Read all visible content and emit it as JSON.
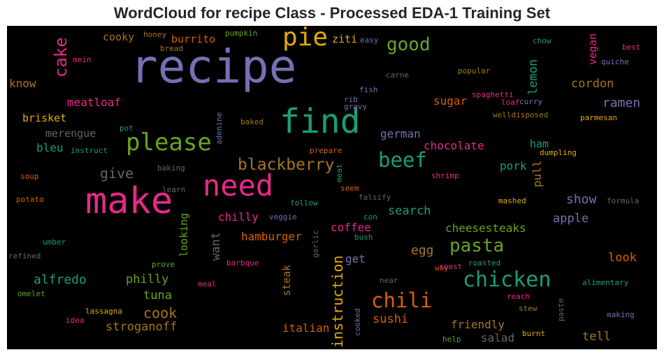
{
  "chart_data": {
    "type": "wordcloud",
    "title": "WordCloud for recipe Class - Processed EDA-1 Training Set",
    "background": "#000000",
    "palette": "Dark2",
    "words": [
      {
        "text": "recipe",
        "weight": 100,
        "color": "#7570b3"
      },
      {
        "text": "make",
        "weight": 80,
        "color": "#e7298a"
      },
      {
        "text": "find",
        "weight": 75,
        "color": "#1b9e77"
      },
      {
        "text": "need",
        "weight": 65,
        "color": "#e7298a"
      },
      {
        "text": "pie",
        "weight": 55,
        "color": "#e6ab02"
      },
      {
        "text": "please",
        "weight": 55,
        "color": "#66a61e"
      },
      {
        "text": "chicken",
        "weight": 50,
        "color": "#1b9e77"
      },
      {
        "text": "chili",
        "weight": 48,
        "color": "#d95f02"
      },
      {
        "text": "beef",
        "weight": 45,
        "color": "#1b9e77"
      },
      {
        "text": "blackberry",
        "weight": 42,
        "color": "#a6761d"
      },
      {
        "text": "pasta",
        "weight": 42,
        "color": "#66a61e"
      },
      {
        "text": "good",
        "weight": 40,
        "color": "#66a61e"
      },
      {
        "text": "cake",
        "weight": 36,
        "color": "#e7298a"
      },
      {
        "text": "instruction",
        "weight": 32,
        "color": "#e6ab02"
      },
      {
        "text": "give",
        "weight": 30,
        "color": "#666666"
      },
      {
        "text": "cook",
        "weight": 30,
        "color": "#a6761d"
      },
      {
        "text": "lemon",
        "weight": 28,
        "color": "#1b9e77"
      },
      {
        "text": "ramen",
        "weight": 28,
        "color": "#7570b3"
      },
      {
        "text": "cordon",
        "weight": 28,
        "color": "#a6761d"
      },
      {
        "text": "show",
        "weight": 28,
        "color": "#7570b3"
      },
      {
        "text": "apple",
        "weight": 28,
        "color": "#7570b3"
      },
      {
        "text": "look",
        "weight": 28,
        "color": "#d95f02"
      },
      {
        "text": "tell",
        "weight": 28,
        "color": "#a6761d"
      },
      {
        "text": "coffee",
        "weight": 27,
        "color": "#e7298a"
      },
      {
        "text": "search",
        "weight": 27,
        "color": "#1b9e77"
      },
      {
        "text": "egg",
        "weight": 27,
        "color": "#a6761d"
      },
      {
        "text": "friendly",
        "weight": 27,
        "color": "#a6761d"
      },
      {
        "text": "salad",
        "weight": 27,
        "color": "#666666"
      },
      {
        "text": "sushi",
        "weight": 27,
        "color": "#d95f02"
      },
      {
        "text": "italian",
        "weight": 27,
        "color": "#d95f02"
      },
      {
        "text": "tuna",
        "weight": 27,
        "color": "#66a61e"
      },
      {
        "text": "stroganoff",
        "weight": 27,
        "color": "#a6761d"
      },
      {
        "text": "alfredo",
        "weight": 27,
        "color": "#1b9e77"
      },
      {
        "text": "philly",
        "weight": 27,
        "color": "#66a61e"
      },
      {
        "text": "want",
        "weight": 27,
        "color": "#666666"
      },
      {
        "text": "hamburger",
        "weight": 26,
        "color": "#d95f02"
      },
      {
        "text": "chilly",
        "weight": 26,
        "color": "#e7298a"
      },
      {
        "text": "looking",
        "weight": 26,
        "color": "#66a61e"
      },
      {
        "text": "cheesesteaks",
        "weight": 26,
        "color": "#66a61e"
      },
      {
        "text": "pork",
        "weight": 26,
        "color": "#1b9e77"
      },
      {
        "text": "pull",
        "weight": 26,
        "color": "#a6761d"
      },
      {
        "text": "ham",
        "weight": 26,
        "color": "#1b9e77"
      },
      {
        "text": "chocolate",
        "weight": 26,
        "color": "#e7298a"
      },
      {
        "text": "german",
        "weight": 26,
        "color": "#7570b3"
      },
      {
        "text": "sugar",
        "weight": 26,
        "color": "#d95f02"
      },
      {
        "text": "steak",
        "weight": 26,
        "color": "#a6761d"
      },
      {
        "text": "get",
        "weight": 26,
        "color": "#7570b3"
      },
      {
        "text": "vegan",
        "weight": 24,
        "color": "#e7298a"
      },
      {
        "text": "cooky",
        "weight": 24,
        "color": "#a6761d"
      },
      {
        "text": "burrito",
        "weight": 24,
        "color": "#d95f02"
      },
      {
        "text": "ziti",
        "weight": 24,
        "color": "#e6ab02"
      },
      {
        "text": "know",
        "weight": 24,
        "color": "#a6761d"
      },
      {
        "text": "meatloaf",
        "weight": 24,
        "color": "#e7298a"
      },
      {
        "text": "brisket",
        "weight": 24,
        "color": "#e6ab02"
      },
      {
        "text": "merengue",
        "weight": 24,
        "color": "#666666"
      },
      {
        "text": "bleu",
        "weight": 24,
        "color": "#1b9e77"
      },
      {
        "text": "honey",
        "weight": 18,
        "color": "#a6761d"
      },
      {
        "text": "pumpkin",
        "weight": 18,
        "color": "#66a61e"
      },
      {
        "text": "easy",
        "weight": 18,
        "color": "#7570b3"
      },
      {
        "text": "chow",
        "weight": 18,
        "color": "#1b9e77"
      },
      {
        "text": "best",
        "weight": 18,
        "color": "#e7298a"
      },
      {
        "text": "quiche",
        "weight": 18,
        "color": "#7570b3"
      },
      {
        "text": "mein",
        "weight": 18,
        "color": "#e7298a"
      },
      {
        "text": "bread",
        "weight": 18,
        "color": "#a6761d"
      },
      {
        "text": "carne",
        "weight": 18,
        "color": "#666666"
      },
      {
        "text": "popular",
        "weight": 18,
        "color": "#a6761d"
      },
      {
        "text": "fish",
        "weight": 18,
        "color": "#7570b3"
      },
      {
        "text": "rib",
        "weight": 18,
        "color": "#7570b3"
      },
      {
        "text": "gravy",
        "weight": 18,
        "color": "#7570b3"
      },
      {
        "text": "spaghetti",
        "weight": 18,
        "color": "#e7298a"
      },
      {
        "text": "loaf",
        "weight": 18,
        "color": "#e7298a"
      },
      {
        "text": "curry",
        "weight": 18,
        "color": "#7570b3"
      },
      {
        "text": "welldisposed",
        "weight": 18,
        "color": "#a6761d"
      },
      {
        "text": "parmesan",
        "weight": 18,
        "color": "#e6ab02"
      },
      {
        "text": "baked",
        "weight": 18,
        "color": "#a6761d"
      },
      {
        "text": "pot",
        "weight": 18,
        "color": "#1b9e77"
      },
      {
        "text": "adenine",
        "weight": 18,
        "color": "#7570b3"
      },
      {
        "text": "instruct",
        "weight": 18,
        "color": "#1b9e77"
      },
      {
        "text": "prepare",
        "weight": 18,
        "color": "#d95f02"
      },
      {
        "text": "dumpling",
        "weight": 18,
        "color": "#e6ab02"
      },
      {
        "text": "meat",
        "weight": 18,
        "color": "#1b9e77"
      },
      {
        "text": "baking",
        "weight": 18,
        "color": "#666666"
      },
      {
        "text": "soup",
        "weight": 18,
        "color": "#d95f02"
      },
      {
        "text": "shrimp",
        "weight": 18,
        "color": "#e7298a"
      },
      {
        "text": "learn",
        "weight": 18,
        "color": "#666666"
      },
      {
        "text": "seem",
        "weight": 18,
        "color": "#d95f02"
      },
      {
        "text": "potato",
        "weight": 18,
        "color": "#d95f02"
      },
      {
        "text": "follow",
        "weight": 18,
        "color": "#1b9e77"
      },
      {
        "text": "falsify",
        "weight": 18,
        "color": "#666666"
      },
      {
        "text": "mashed",
        "weight": 18,
        "color": "#e6ab02"
      },
      {
        "text": "formula",
        "weight": 18,
        "color": "#666666"
      },
      {
        "text": "veggie",
        "weight": 18,
        "color": "#7570b3"
      },
      {
        "text": "con",
        "weight": 18,
        "color": "#1b9e77"
      },
      {
        "text": "bush",
        "weight": 18,
        "color": "#1b9e77"
      },
      {
        "text": "garlic",
        "weight": 18,
        "color": "#666666"
      },
      {
        "text": "umber",
        "weight": 18,
        "color": "#1b9e77"
      },
      {
        "text": "refined",
        "weight": 18,
        "color": "#666666"
      },
      {
        "text": "barbque",
        "weight": 18,
        "color": "#e7298a"
      },
      {
        "text": "prove",
        "weight": 18,
        "color": "#66a61e"
      },
      {
        "text": "roasted",
        "weight": 18,
        "color": "#1b9e77"
      },
      {
        "text": "way",
        "weight": 18,
        "color": "#d95f02"
      },
      {
        "text": "roast",
        "weight": 18,
        "color": "#e7298a"
      },
      {
        "text": "near",
        "weight": 18,
        "color": "#666666"
      },
      {
        "text": "alimentary",
        "weight": 18,
        "color": "#1b9e77"
      },
      {
        "text": "omelet",
        "weight": 18,
        "color": "#66a61e"
      },
      {
        "text": "meal",
        "weight": 18,
        "color": "#e7298a"
      },
      {
        "text": "reach",
        "weight": 18,
        "color": "#e7298a"
      },
      {
        "text": "paste",
        "weight": 18,
        "color": "#666666"
      },
      {
        "text": "lassagna",
        "weight": 18,
        "color": "#e6ab02"
      },
      {
        "text": "idea",
        "weight": 18,
        "color": "#e7298a"
      },
      {
        "text": "stew",
        "weight": 18,
        "color": "#a6761d"
      },
      {
        "text": "making",
        "weight": 18,
        "color": "#7570b3"
      },
      {
        "text": "cooked",
        "weight": 18,
        "color": "#7570b3"
      },
      {
        "text": "burnt",
        "weight": 18,
        "color": "#e6ab02"
      },
      {
        "text": "help",
        "weight": 18,
        "color": "#66a61e"
      }
    ]
  }
}
